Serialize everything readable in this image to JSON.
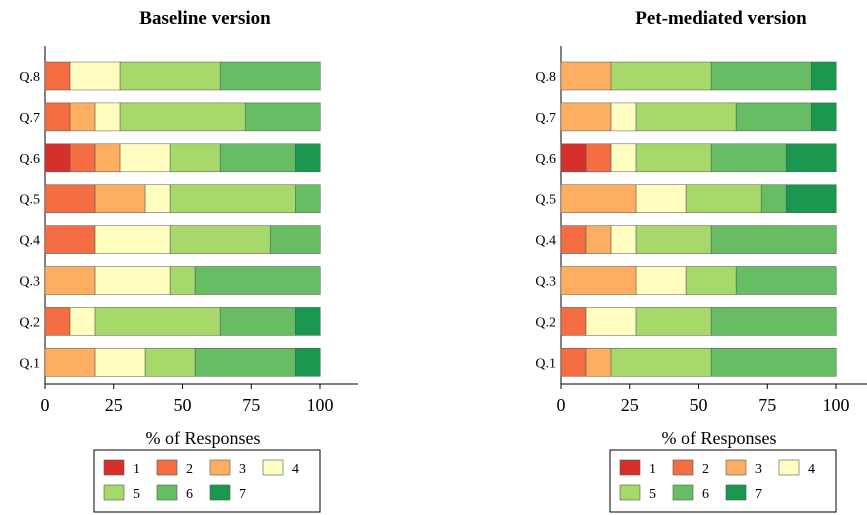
{
  "chart_data": [
    {
      "type": "bar",
      "stacked": true,
      "orientation": "horizontal",
      "title": "Baseline version",
      "xlabel": "% of Responses",
      "ylabel": "",
      "xlim": [
        0,
        100
      ],
      "xticks": [
        "0",
        "25",
        "50",
        "75",
        "100"
      ],
      "categories": [
        "Q.8",
        "Q.7",
        "Q.6",
        "Q.5",
        "Q.4",
        "Q.3",
        "Q.2",
        "Q.1"
      ],
      "series": [
        {
          "name": "1",
          "color": "#d7302b",
          "values": [
            0,
            0,
            9.1,
            0,
            0,
            0,
            0,
            0
          ]
        },
        {
          "name": "2",
          "color": "#f46d43",
          "values": [
            9.1,
            9.1,
            9.1,
            18.2,
            18.2,
            0,
            9.1,
            0
          ]
        },
        {
          "name": "3",
          "color": "#fdae61",
          "values": [
            0,
            9.1,
            9.1,
            18.2,
            0,
            18.2,
            0,
            18.2
          ]
        },
        {
          "name": "4",
          "color": "#fffdbf",
          "values": [
            18.2,
            9.1,
            18.2,
            9.1,
            27.3,
            27.3,
            9.1,
            18.2
          ]
        },
        {
          "name": "5",
          "color": "#a6d96a",
          "values": [
            36.4,
            45.5,
            18.2,
            45.5,
            36.4,
            9.1,
            45.5,
            18.2
          ]
        },
        {
          "name": "6",
          "color": "#66bd63",
          "values": [
            36.4,
            27.3,
            27.3,
            9.1,
            18.2,
            45.5,
            27.3,
            36.4
          ]
        },
        {
          "name": "7",
          "color": "#1a9850",
          "values": [
            0,
            0,
            9.1,
            0,
            0,
            0,
            9.1,
            9.1
          ]
        }
      ]
    },
    {
      "type": "bar",
      "stacked": true,
      "orientation": "horizontal",
      "title": "Pet-mediated version",
      "xlabel": "% of Responses",
      "ylabel": "",
      "xlim": [
        0,
        100
      ],
      "xticks": [
        "0",
        "25",
        "50",
        "75",
        "100"
      ],
      "categories": [
        "Q.8",
        "Q.7",
        "Q.6",
        "Q.5",
        "Q.4",
        "Q.3",
        "Q.2",
        "Q.1"
      ],
      "series": [
        {
          "name": "1",
          "color": "#d7302b",
          "values": [
            0,
            0,
            9.1,
            0,
            0,
            0,
            0,
            0
          ]
        },
        {
          "name": "2",
          "color": "#f46d43",
          "values": [
            0,
            0,
            9.1,
            0,
            9.1,
            0,
            9.1,
            9.1
          ]
        },
        {
          "name": "3",
          "color": "#fdae61",
          "values": [
            18.2,
            18.2,
            0,
            27.3,
            9.1,
            27.3,
            0,
            9.1
          ]
        },
        {
          "name": "4",
          "color": "#fffdbf",
          "values": [
            0,
            9.1,
            9.1,
            18.2,
            9.1,
            18.2,
            18.2,
            0
          ]
        },
        {
          "name": "5",
          "color": "#a6d96a",
          "values": [
            36.4,
            36.4,
            27.3,
            27.3,
            27.3,
            18.2,
            27.3,
            36.4
          ]
        },
        {
          "name": "6",
          "color": "#66bd63",
          "values": [
            36.4,
            27.3,
            27.3,
            9.1,
            45.5,
            36.4,
            45.5,
            45.5
          ]
        },
        {
          "name": "7",
          "color": "#1a9850",
          "values": [
            9.1,
            9.1,
            18.2,
            18.2,
            0,
            0,
            0,
            0
          ]
        }
      ]
    }
  ]
}
